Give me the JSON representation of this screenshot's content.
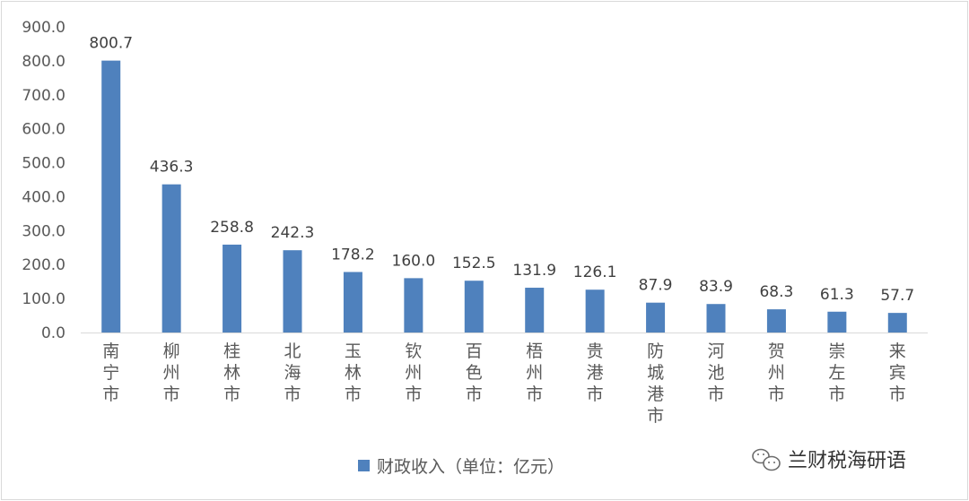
{
  "chart_data": {
    "type": "bar",
    "categories": [
      "南宁市",
      "柳州市",
      "桂林市",
      "北海市",
      "玉林市",
      "钦州市",
      "百色市",
      "梧州市",
      "贵港市",
      "防城港市",
      "河池市",
      "贺州市",
      "崇左市",
      "来宾市"
    ],
    "series": [
      {
        "name": "财政收入（单位：亿元）",
        "values": [
          800.7,
          436.3,
          258.8,
          242.3,
          178.2,
          160.0,
          152.5,
          131.9,
          126.1,
          87.9,
          83.9,
          68.3,
          61.3,
          57.7
        ],
        "value_labels": [
          "800.7",
          "436.3",
          "258.8",
          "242.3",
          "178.2",
          "160.0",
          "152.5",
          "131.9",
          "126.1",
          "87.9",
          "83.9",
          "68.3",
          "61.3",
          "57.7"
        ]
      }
    ],
    "y_ticks": [
      "0.0",
      "100.0",
      "200.0",
      "300.0",
      "400.0",
      "500.0",
      "600.0",
      "700.0",
      "800.0",
      "900.0"
    ],
    "ylim": [
      0,
      900
    ],
    "grid": false,
    "legend_position": "bottom",
    "bar_color": "#4f81bd"
  },
  "watermark": {
    "text": "兰财税海研语",
    "icon": "wechat-icon"
  }
}
